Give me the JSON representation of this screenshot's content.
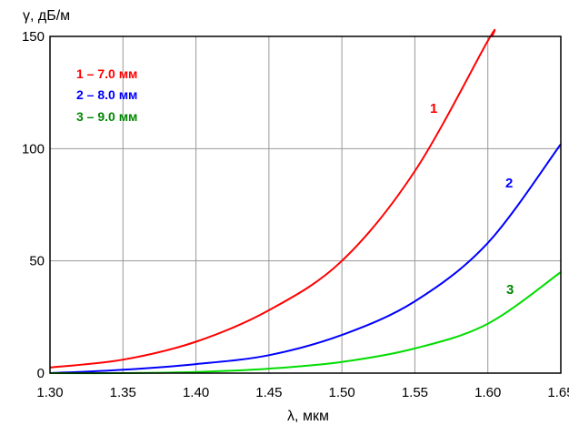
{
  "chart_data": {
    "type": "line",
    "xlabel": "λ, мкм",
    "ylabel": "γ, дБ/м",
    "xlim": [
      1.3,
      1.65
    ],
    "ylim": [
      0,
      150
    ],
    "x_ticks": [
      "1.30",
      "1.35",
      "1.40",
      "1.45",
      "1.50",
      "1.55",
      "1.60",
      "1.65"
    ],
    "y_ticks": [
      "0",
      "50",
      "100",
      "150"
    ],
    "grid": true,
    "legend": [
      "1 – 7.0 мм",
      "2 – 8.0 мм",
      "3 – 9.0 мм"
    ],
    "series": [
      {
        "name": "1",
        "color": "#ff0000",
        "x": [
          1.3,
          1.35,
          1.4,
          1.45,
          1.5,
          1.55,
          1.6,
          1.603
        ],
        "values": [
          2.5,
          6,
          14,
          28,
          50,
          90,
          148,
          150
        ]
      },
      {
        "name": "2",
        "color": "#0000ff",
        "x": [
          1.3,
          1.35,
          1.4,
          1.45,
          1.5,
          1.55,
          1.6,
          1.65
        ],
        "values": [
          0,
          1.5,
          4,
          8,
          17,
          32,
          58,
          102
        ]
      },
      {
        "name": "3",
        "color": "#00dd00",
        "x": [
          1.3,
          1.35,
          1.4,
          1.45,
          1.5,
          1.55,
          1.6,
          1.65
        ],
        "values": [
          0,
          0,
          0.5,
          2,
          5,
          11,
          22,
          45
        ]
      }
    ]
  }
}
